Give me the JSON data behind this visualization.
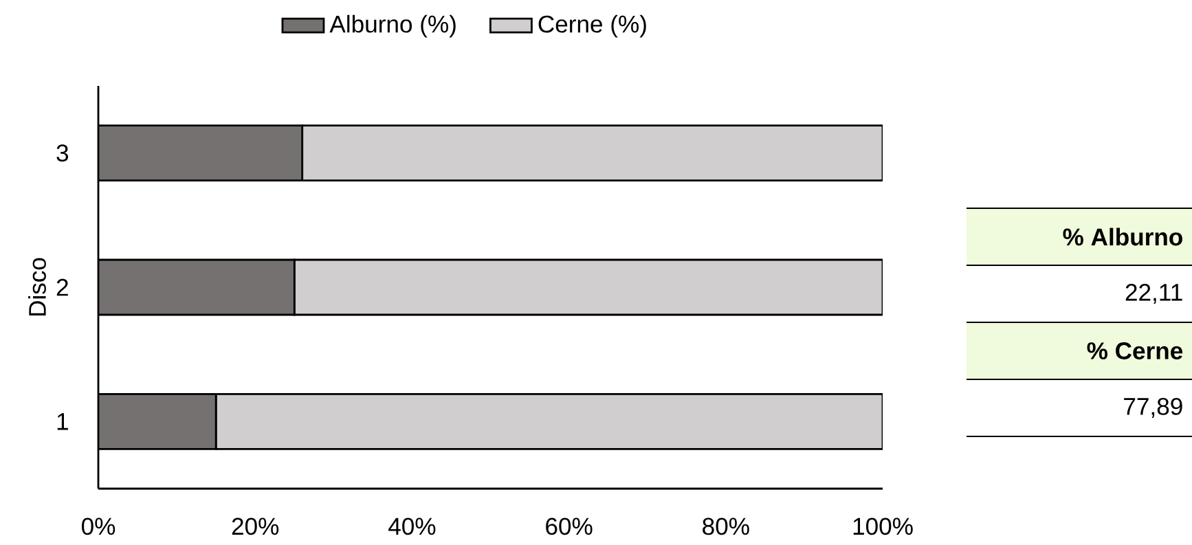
{
  "chart_data": {
    "type": "bar",
    "orientation": "horizontal",
    "stacked": true,
    "ylabel": "Disco",
    "categories": [
      "3",
      "2",
      "1"
    ],
    "series": [
      {
        "name": "Alburno (%)",
        "color": "#767171",
        "values": [
          26,
          25,
          15
        ]
      },
      {
        "name": "Cerne (%)",
        "color": "#d0cece",
        "values": [
          74,
          75,
          85
        ]
      }
    ],
    "xlim": [
      0,
      100
    ],
    "xticks": [
      {
        "value": 0,
        "label": "0%"
      },
      {
        "value": 20,
        "label": "20%"
      },
      {
        "value": 40,
        "label": "40%"
      },
      {
        "value": 60,
        "label": "60%"
      },
      {
        "value": 80,
        "label": "80%"
      },
      {
        "value": 100,
        "label": "100%"
      }
    ],
    "legend": "top",
    "annotations": [
      "% Alburno",
      "22,11",
      "% Cerne",
      "77,89"
    ]
  }
}
